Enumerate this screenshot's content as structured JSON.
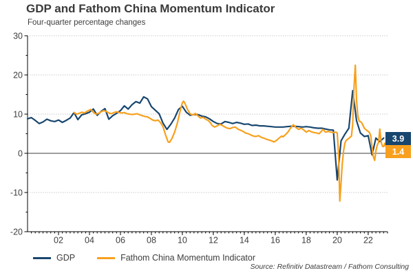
{
  "source": "Source: Refinitiv Datastream / Fathom Consulting",
  "colors": {
    "gdp": "#17466F",
    "fcmi": "#F8A01D",
    "grid": "#b0b0b0",
    "axis": "#000000",
    "zero_line": "#3c3c3c",
    "text": "#3d3d3d",
    "badge_text": "#ffffff"
  },
  "chart_data": {
    "type": "line",
    "title": "GDP and Fathom China Momentum Indicator",
    "subtitle": "Four-quarter percentage changes",
    "xlabel": "",
    "ylabel": "",
    "ylim": [
      -20,
      30
    ],
    "xlim": [
      2000,
      2023.25
    ],
    "y_ticks": [
      30,
      20,
      10,
      0,
      -10,
      -20
    ],
    "y_minor_ticks": [
      25,
      15,
      5,
      -5,
      -15
    ],
    "x_tick_years": [
      2002,
      2004,
      2006,
      2008,
      2010,
      2012,
      2014,
      2016,
      2018,
      2020,
      2022
    ],
    "x_tick_labels": [
      "02",
      "04",
      "06",
      "08",
      "10",
      "12",
      "14",
      "16",
      "18",
      "20",
      "22"
    ],
    "x_minor_tick_step": 0.25,
    "gridlines_at": [
      30,
      20,
      10,
      -10
    ],
    "grid_style": "dotted",
    "zero_line_at": 0,
    "legend_position": "bottom-left",
    "series": [
      {
        "name": "GDP",
        "color": "#17466F",
        "end_label": "3.9",
        "x_start": 2000.0,
        "x_step": 0.25,
        "values": [
          8.8,
          9.1,
          8.4,
          7.6,
          8.0,
          8.7,
          8.3,
          8.1,
          8.5,
          7.9,
          8.4,
          9.0,
          10.4,
          8.6,
          9.8,
          10.1,
          10.5,
          11.3,
          9.7,
          10.7,
          11.4,
          8.7,
          9.6,
          10.2,
          10.9,
          12.1,
          11.3,
          12.4,
          13.2,
          12.8,
          14.4,
          13.9,
          11.9,
          11.0,
          10.1,
          7.7,
          6.1,
          7.4,
          9.0,
          11.2,
          12.0,
          10.5,
          9.7,
          9.9,
          9.9,
          9.5,
          9.3,
          8.8,
          8.1,
          7.6,
          7.5,
          8.1,
          7.9,
          7.6,
          7.9,
          7.7,
          7.4,
          7.5,
          7.1,
          7.2,
          7.0,
          7.0,
          6.9,
          6.8,
          6.7,
          6.7,
          6.7,
          6.8,
          6.9,
          6.9,
          6.8,
          6.7,
          6.8,
          6.7,
          6.5,
          6.4,
          6.4,
          6.2,
          6.0,
          5.9,
          -6.8,
          3.2,
          4.9,
          6.4,
          16.0,
          8.3,
          5.2,
          4.3,
          4.5,
          -0.4,
          3.9,
          3.0,
          3.9
        ]
      },
      {
        "name": "Fathom China Momentum Indicator",
        "color": "#F8A01D",
        "end_label": "1.4",
        "points": [
          [
            2003.0,
            10.4
          ],
          [
            2003.17,
            10.0
          ],
          [
            2003.33,
            10.2
          ],
          [
            2003.5,
            10.5
          ],
          [
            2003.67,
            10.3
          ],
          [
            2003.83,
            10.7
          ],
          [
            2004.08,
            11.2
          ],
          [
            2004.25,
            10.5
          ],
          [
            2004.42,
            10.0
          ],
          [
            2004.58,
            10.2
          ],
          [
            2004.75,
            10.6
          ],
          [
            2004.92,
            10.9
          ],
          [
            2005.08,
            10.7
          ],
          [
            2005.25,
            10.3
          ],
          [
            2005.42,
            10.1
          ],
          [
            2005.58,
            10.4
          ],
          [
            2005.75,
            10.6
          ],
          [
            2005.92,
            10.4
          ],
          [
            2006.08,
            10.3
          ],
          [
            2006.25,
            10.4
          ],
          [
            2006.42,
            10.1
          ],
          [
            2006.58,
            10.0
          ],
          [
            2006.75,
            9.9
          ],
          [
            2006.92,
            10.0
          ],
          [
            2007.08,
            10.1
          ],
          [
            2007.25,
            9.8
          ],
          [
            2007.42,
            9.6
          ],
          [
            2007.58,
            9.4
          ],
          [
            2007.75,
            9.3
          ],
          [
            2007.92,
            8.9
          ],
          [
            2008.08,
            8.5
          ],
          [
            2008.25,
            8.3
          ],
          [
            2008.42,
            8.5
          ],
          [
            2008.58,
            7.9
          ],
          [
            2008.75,
            6.8
          ],
          [
            2008.92,
            4.6
          ],
          [
            2009.08,
            2.9
          ],
          [
            2009.17,
            2.8
          ],
          [
            2009.33,
            3.8
          ],
          [
            2009.5,
            5.4
          ],
          [
            2009.67,
            7.6
          ],
          [
            2009.83,
            10.3
          ],
          [
            2009.92,
            11.8
          ],
          [
            2010.0,
            12.9
          ],
          [
            2010.08,
            13.3
          ],
          [
            2010.17,
            12.7
          ],
          [
            2010.33,
            11.2
          ],
          [
            2010.5,
            10.1
          ],
          [
            2010.58,
            9.9
          ],
          [
            2010.75,
            9.8
          ],
          [
            2010.83,
            10.2
          ],
          [
            2010.92,
            9.9
          ],
          [
            2011.08,
            9.3
          ],
          [
            2011.17,
            9.0
          ],
          [
            2011.33,
            9.2
          ],
          [
            2011.5,
            8.7
          ],
          [
            2011.67,
            8.4
          ],
          [
            2011.83,
            7.7
          ],
          [
            2011.92,
            7.1
          ],
          [
            2012.08,
            6.7
          ],
          [
            2012.25,
            7.0
          ],
          [
            2012.42,
            7.4
          ],
          [
            2012.58,
            7.1
          ],
          [
            2012.75,
            6.7
          ],
          [
            2012.92,
            6.4
          ],
          [
            2013.08,
            6.3
          ],
          [
            2013.25,
            6.6
          ],
          [
            2013.42,
            6.7
          ],
          [
            2013.58,
            6.2
          ],
          [
            2013.75,
            5.9
          ],
          [
            2013.92,
            5.6
          ],
          [
            2014.08,
            5.2
          ],
          [
            2014.25,
            5.0
          ],
          [
            2014.42,
            4.7
          ],
          [
            2014.58,
            4.4
          ],
          [
            2014.75,
            4.3
          ],
          [
            2014.92,
            4.5
          ],
          [
            2015.08,
            4.1
          ],
          [
            2015.25,
            3.9
          ],
          [
            2015.42,
            3.6
          ],
          [
            2015.58,
            3.4
          ],
          [
            2015.75,
            3.2
          ],
          [
            2015.92,
            2.9
          ],
          [
            2016.08,
            3.3
          ],
          [
            2016.25,
            3.9
          ],
          [
            2016.42,
            4.4
          ],
          [
            2016.5,
            4.2
          ],
          [
            2016.67,
            4.8
          ],
          [
            2016.83,
            5.5
          ],
          [
            2017.0,
            6.5
          ],
          [
            2017.17,
            7.3
          ],
          [
            2017.33,
            6.6
          ],
          [
            2017.5,
            6.1
          ],
          [
            2017.67,
            6.4
          ],
          [
            2017.83,
            6.0
          ],
          [
            2018.0,
            5.4
          ],
          [
            2018.17,
            5.8
          ],
          [
            2018.33,
            5.5
          ],
          [
            2018.5,
            5.3
          ],
          [
            2018.67,
            5.2
          ],
          [
            2018.83,
            5.0
          ],
          [
            2019.0,
            5.7
          ],
          [
            2019.08,
            6.1
          ],
          [
            2019.25,
            5.4
          ],
          [
            2019.42,
            5.6
          ],
          [
            2019.58,
            5.4
          ],
          [
            2019.75,
            5.3
          ],
          [
            2019.92,
            5.4
          ],
          [
            2020.0,
            5.2
          ],
          [
            2020.08,
            0.5
          ],
          [
            2020.17,
            -12.2
          ],
          [
            2020.25,
            -7.5
          ],
          [
            2020.33,
            -2.5
          ],
          [
            2020.42,
            0.8
          ],
          [
            2020.5,
            2.6
          ],
          [
            2020.58,
            3.3
          ],
          [
            2020.67,
            3.6
          ],
          [
            2020.75,
            3.8
          ],
          [
            2020.83,
            4.1
          ],
          [
            2020.92,
            4.4
          ],
          [
            2021.0,
            7.5
          ],
          [
            2021.08,
            16.5
          ],
          [
            2021.17,
            22.5
          ],
          [
            2021.25,
            13.5
          ],
          [
            2021.33,
            9.6
          ],
          [
            2021.42,
            8.2
          ],
          [
            2021.5,
            8.1
          ],
          [
            2021.58,
            7.8
          ],
          [
            2021.67,
            7.1
          ],
          [
            2021.75,
            6.4
          ],
          [
            2021.83,
            6.1
          ],
          [
            2021.92,
            5.8
          ],
          [
            2022.0,
            5.6
          ],
          [
            2022.08,
            5.3
          ],
          [
            2022.17,
            4.4
          ],
          [
            2022.25,
            1.5
          ],
          [
            2022.33,
            -0.8
          ],
          [
            2022.42,
            -1.8
          ],
          [
            2022.5,
            0.6
          ],
          [
            2022.58,
            2.0
          ],
          [
            2022.67,
            2.8
          ],
          [
            2022.75,
            6.2
          ],
          [
            2022.83,
            3.0
          ],
          [
            2022.92,
            1.8
          ],
          [
            2023.0,
            1.7
          ],
          [
            2023.08,
            2.6
          ],
          [
            2023.17,
            1.4
          ]
        ]
      }
    ]
  }
}
